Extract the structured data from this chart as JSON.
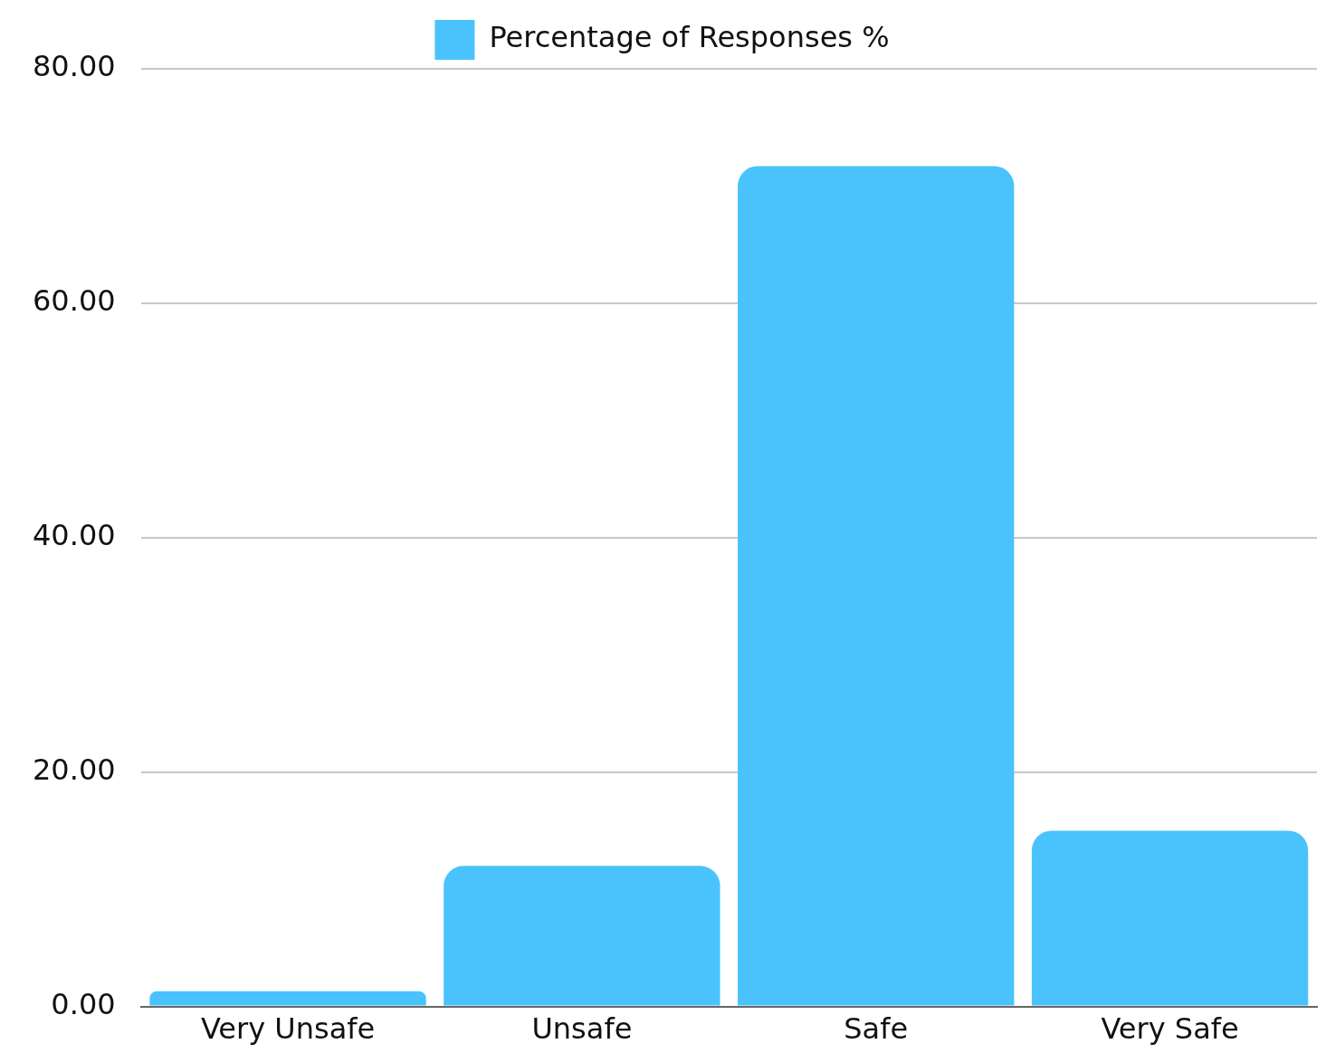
{
  "chart_data": {
    "type": "bar",
    "categories": [
      "Very Unsafe",
      "Unsafe",
      "Safe",
      "Very Safe"
    ],
    "series": [
      {
        "name": "Percentage of Responses %",
        "color": "#4ac3fd",
        "values": [
          1.3,
          12,
          71.7,
          15
        ]
      }
    ],
    "ylim": [
      0,
      80
    ],
    "yticks": [
      {
        "value": 0,
        "label": "0.00"
      },
      {
        "value": 20,
        "label": "20.00"
      },
      {
        "value": 40,
        "label": "40.00"
      },
      {
        "value": 60,
        "label": "60.00"
      },
      {
        "value": 80,
        "label": "80.00"
      }
    ],
    "grid": "y",
    "legend": "top"
  }
}
